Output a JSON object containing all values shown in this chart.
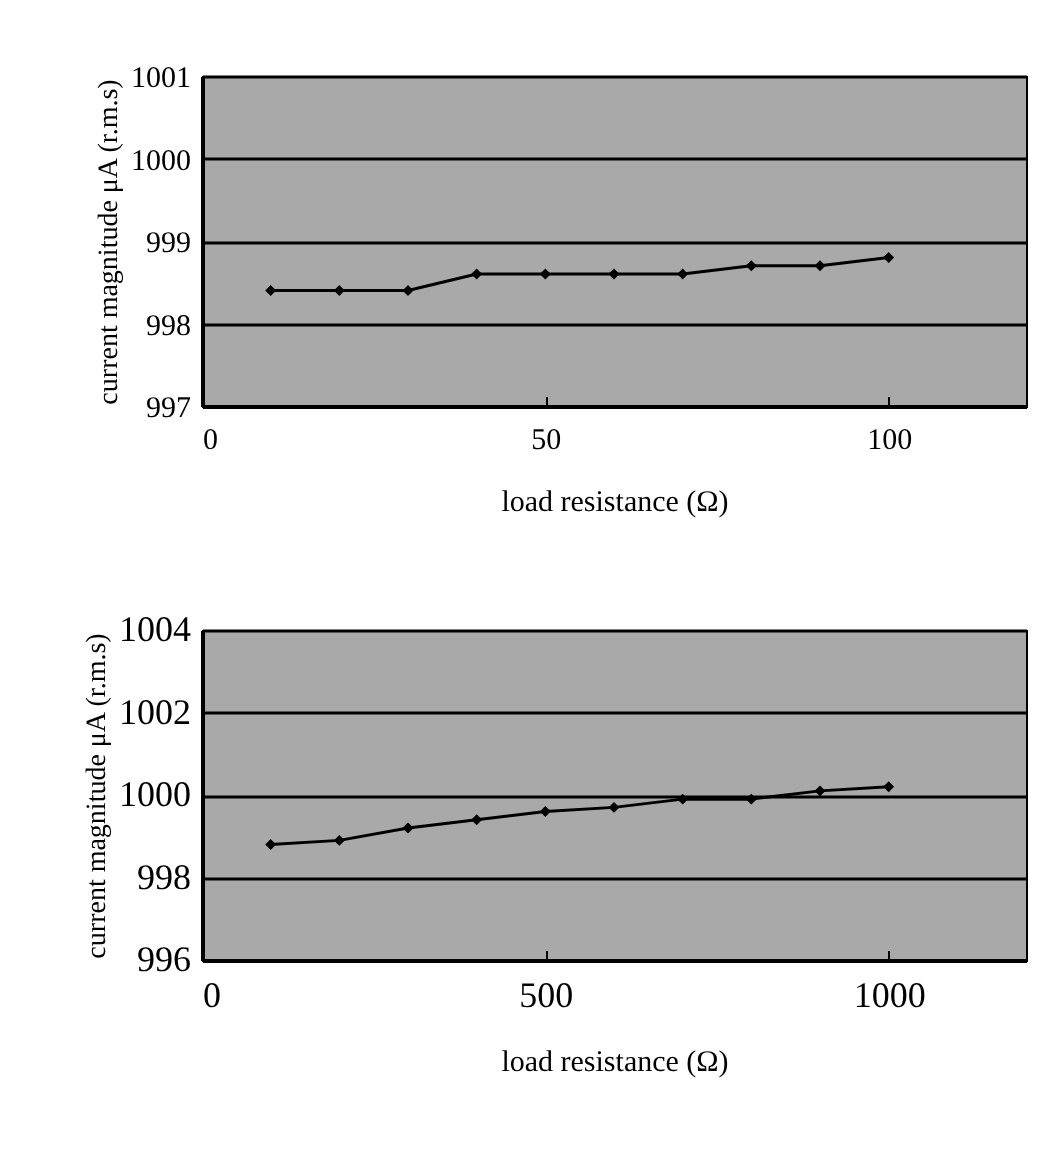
{
  "chart_data": [
    {
      "type": "line",
      "xlabel": "load resistance (Ω)",
      "ylabel": "current magnitude μA (r.m.s)",
      "x": [
        10,
        20,
        30,
        40,
        50,
        60,
        70,
        80,
        90,
        100
      ],
      "series": [
        {
          "color": "#000000",
          "values": [
            998.4,
            998.4,
            998.4,
            998.6,
            998.6,
            998.6,
            998.6,
            998.7,
            998.7,
            998.8
          ]
        }
      ],
      "xlim": [
        0,
        120
      ],
      "xticks": [
        0,
        50,
        100
      ],
      "ylim": [
        997,
        1001
      ],
      "yticks": [
        997,
        998,
        999,
        1000,
        1001
      ],
      "grid": "y",
      "marker": "diamond",
      "line_style": "solid"
    },
    {
      "type": "line",
      "xlabel": "load resistance (Ω)",
      "ylabel": "current magnitude μA (r.m.s)",
      "x": [
        100,
        200,
        300,
        400,
        500,
        600,
        700,
        800,
        900,
        1000
      ],
      "series": [
        {
          "color": "#000000",
          "values": [
            998.8,
            998.9,
            999.2,
            999.4,
            999.6,
            999.7,
            999.9,
            999.9,
            1000.1,
            1000.2
          ]
        }
      ],
      "xlim": [
        0,
        1200
      ],
      "xticks": [
        0,
        500,
        1000
      ],
      "ylim": [
        996,
        1004
      ],
      "yticks": [
        996,
        998,
        1000,
        1002,
        1004
      ],
      "grid": "y",
      "marker": "diamond",
      "line_style": "solid"
    }
  ]
}
